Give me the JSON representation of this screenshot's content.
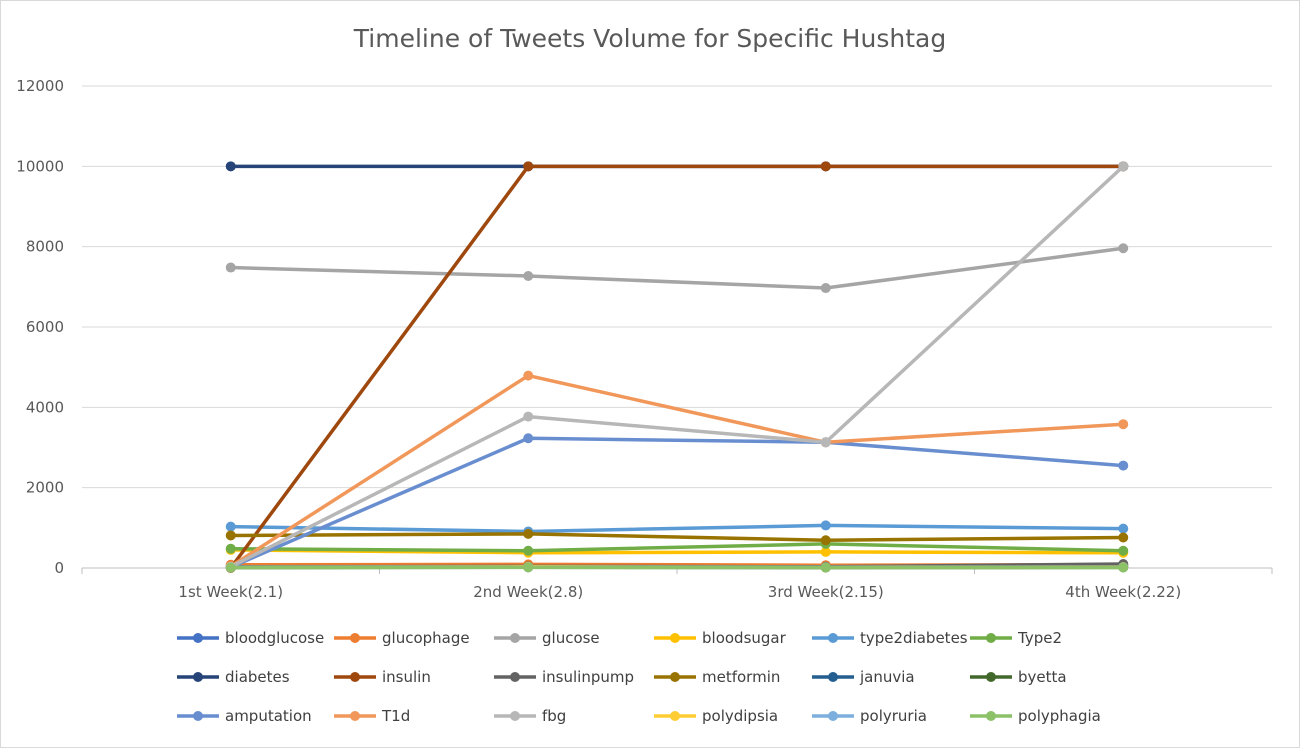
{
  "chart_data": {
    "type": "line",
    "title": "Timeline of Tweets Volume for Specific Hushtag",
    "categories": [
      "1st Week(2.1)",
      "2nd Week(2.8)",
      "3rd Week(2.15)",
      "4th Week(2.22)"
    ],
    "ylim": [
      0,
      12000
    ],
    "yticks": [
      0,
      2000,
      4000,
      6000,
      8000,
      10000,
      12000
    ],
    "grid": true,
    "legend_position": "bottom",
    "series": [
      {
        "name": "bloodglucose",
        "color": "#4472C4",
        "values": [
          50,
          60,
          40,
          60
        ]
      },
      {
        "name": "glucophage",
        "color": "#ED7D31",
        "values": [
          80,
          90,
          70,
          80
        ]
      },
      {
        "name": "glucose",
        "color": "#A5A5A5",
        "values": [
          7480,
          7270,
          6970,
          7960
        ]
      },
      {
        "name": "bloodsugar",
        "color": "#FFC000",
        "values": [
          450,
          380,
          400,
          380
        ]
      },
      {
        "name": "type2diabetes",
        "color": "#5B9BD5",
        "values": [
          1030,
          910,
          1060,
          980
        ]
      },
      {
        "name": "Type2",
        "color": "#70AD47",
        "values": [
          480,
          430,
          600,
          430
        ]
      },
      {
        "name": "diabetes",
        "color": "#264478",
        "values": [
          10000,
          10000,
          10000,
          10000
        ]
      },
      {
        "name": "insulin",
        "color": "#9E480E",
        "values": [
          0,
          10000,
          10000,
          10000
        ]
      },
      {
        "name": "insulinpump",
        "color": "#636363",
        "values": [
          30,
          40,
          30,
          100
        ]
      },
      {
        "name": "metformin",
        "color": "#997300",
        "values": [
          810,
          850,
          690,
          760
        ]
      },
      {
        "name": "januvia",
        "color": "#255E91",
        "values": [
          20,
          30,
          20,
          20
        ]
      },
      {
        "name": "byetta",
        "color": "#43682B",
        "values": [
          10,
          20,
          10,
          15
        ]
      },
      {
        "name": "amputation",
        "color": "#698ED0",
        "values": [
          20,
          3230,
          3130,
          2550
        ]
      },
      {
        "name": "T1d",
        "color": "#F1975A",
        "values": [
          40,
          4790,
          3130,
          3580
        ]
      },
      {
        "name": "fbg",
        "color": "#B7B7B7",
        "values": [
          30,
          3770,
          3130,
          10000
        ]
      },
      {
        "name": "polydipsia",
        "color": "#FFCD33",
        "values": [
          20,
          30,
          20,
          25
        ]
      },
      {
        "name": "polyruria",
        "color": "#7CAFDD",
        "values": [
          15,
          20,
          15,
          20
        ]
      },
      {
        "name": "polyphagia",
        "color": "#8CC168",
        "values": [
          10,
          15,
          10,
          12
        ]
      }
    ]
  }
}
